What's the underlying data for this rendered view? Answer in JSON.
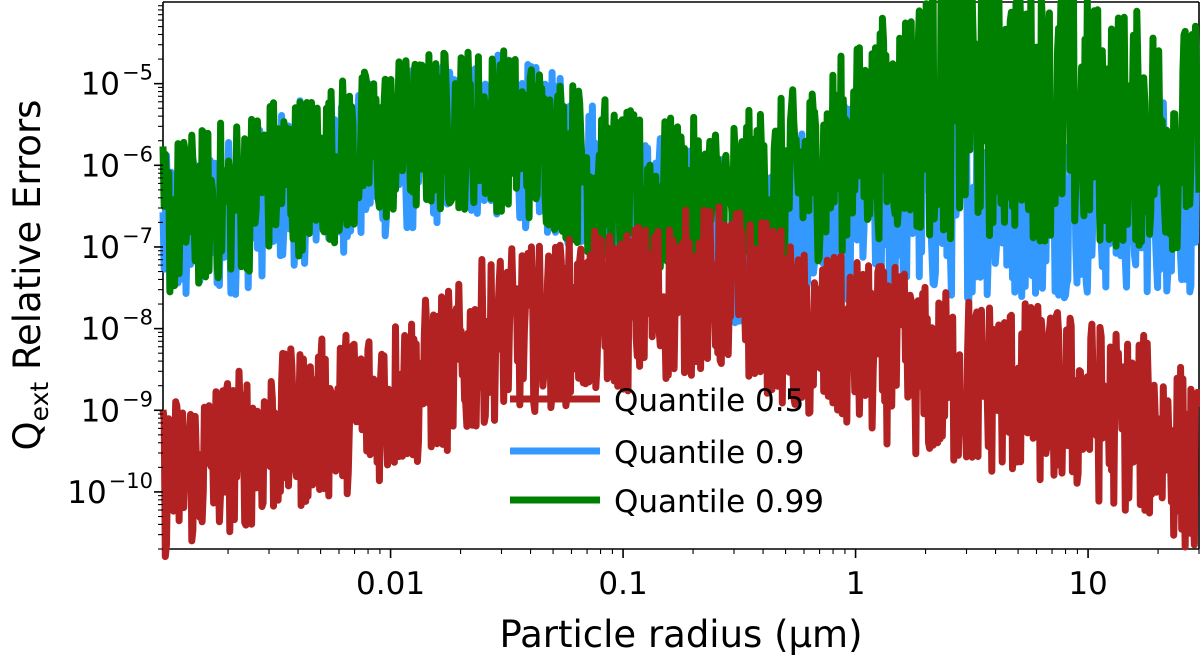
{
  "chart_data": {
    "type": "line",
    "title": "",
    "xlabel": "Particle radius (μm)",
    "ylabel": "Qext Relative Errors",
    "ylabel_main": "Q",
    "ylabel_sub": "ext",
    "ylabel_rest": " Relative Errors",
    "xscale": "log",
    "yscale": "log",
    "xlim": [
      0.00105,
      30
    ],
    "ylim": [
      2e-11,
      0.0001
    ],
    "grid": false,
    "legend_position": "lower-center",
    "x_ticks": [
      {
        "value": 0.01,
        "label": "0.01"
      },
      {
        "value": 0.1,
        "label": "0.1"
      },
      {
        "value": 1,
        "label": "1"
      },
      {
        "value": 10,
        "label": "10"
      }
    ],
    "y_ticks": [
      {
        "value": 1e-10,
        "base": "10",
        "exp": "−10"
      },
      {
        "value": 1e-09,
        "base": "10",
        "exp": "−9"
      },
      {
        "value": 1e-08,
        "base": "10",
        "exp": "−8"
      },
      {
        "value": 1e-07,
        "base": "10",
        "exp": "−7"
      },
      {
        "value": 1e-06,
        "base": "10",
        "exp": "−6"
      },
      {
        "value": 1e-05,
        "base": "10",
        "exp": "−5"
      }
    ],
    "series": [
      {
        "name": "Quantile 0.5",
        "color": "#b22222",
        "noise": [
          [
            0.001,
            0
          ],
          [
            0.25,
            0.02
          ],
          [
            1,
            0.04
          ],
          [
            30,
            0.06
          ]
        ],
        "points": [
          [
            0.00105,
            1.45e-10
          ],
          [
            0.002,
            3e-10
          ],
          [
            0.005,
            7.5e-10
          ],
          [
            0.01,
            1.5e-09
          ],
          [
            0.015,
            2.5e-09
          ],
          [
            0.02,
            3.5e-09
          ],
          [
            0.022,
            4.2e-09
          ],
          [
            0.025,
            7e-09
          ],
          [
            0.03,
            8.7e-09
          ],
          [
            0.04,
            1e-08
          ],
          [
            0.06,
            1.25e-08
          ],
          [
            0.1,
            1.7e-08
          ],
          [
            0.15,
            2.3e-08
          ],
          [
            0.2,
            2.85e-08
          ],
          [
            0.25,
            3.1e-08
          ],
          [
            0.3,
            2.9e-08
          ],
          [
            0.4,
            2e-08
          ],
          [
            0.5,
            1.3e-08
          ],
          [
            0.55,
            8e-09
          ],
          [
            0.7,
            7e-09
          ],
          [
            1.0,
            6e-09
          ],
          [
            1.5,
            4.5e-09
          ],
          [
            2.0,
            2.8e-09
          ],
          [
            3.0,
            2.2e-09
          ],
          [
            5.0,
            1.8e-09
          ],
          [
            8.0,
            1.3e-09
          ],
          [
            12.0,
            9e-10
          ],
          [
            18.0,
            6e-10
          ],
          [
            22.0,
            4.5e-10
          ],
          [
            26.0,
            2.5e-10
          ],
          [
            30.0,
            1.5e-10
          ]
        ]
      },
      {
        "name": "Quantile 0.9",
        "color": "#3399ff",
        "noise": [
          [
            0.001,
            0
          ],
          [
            0.3,
            0.02
          ],
          [
            0.6,
            0.06
          ],
          [
            1.1,
            0.1
          ],
          [
            30,
            0.11
          ]
        ],
        "points": [
          [
            0.00105,
            1.3e-07
          ],
          [
            0.0025,
            3e-07
          ],
          [
            0.0027,
            4e-07
          ],
          [
            0.0033,
            5.3e-07
          ],
          [
            0.005,
            7e-07
          ],
          [
            0.01,
            1.3e-06
          ],
          [
            0.015,
            1.8e-06
          ],
          [
            0.02,
            2.15e-06
          ],
          [
            0.026,
            2.3e-06
          ],
          [
            0.035,
            2e-06
          ],
          [
            0.05,
            1.3e-06
          ],
          [
            0.08,
            6.5e-07
          ],
          [
            0.12,
            3e-07
          ],
          [
            0.18,
            1.7e-07
          ],
          [
            0.25,
            1.5e-07
          ],
          [
            0.35,
            1.15e-07
          ],
          [
            0.45,
            1.25e-07
          ],
          [
            0.6,
            1.8e-07
          ],
          [
            0.8,
            2.8e-07
          ],
          [
            1.0,
            4e-07
          ],
          [
            1.3,
            4.5e-07
          ],
          [
            2.0,
            4e-07
          ],
          [
            4.0,
            4.2e-07
          ],
          [
            8.0,
            4.5e-07
          ],
          [
            15.0,
            4.8e-07
          ],
          [
            30.0,
            5e-07
          ]
        ]
      },
      {
        "name": "Quantile 0.99",
        "color": "#008000",
        "noise": [
          [
            0.001,
            0
          ],
          [
            0.1,
            0.015
          ],
          [
            0.5,
            0.04
          ],
          [
            1.0,
            0.1
          ],
          [
            2.0,
            0.2
          ],
          [
            3.0,
            0.27
          ],
          [
            5.0,
            0.22
          ],
          [
            30,
            0.15
          ]
        ],
        "points": [
          [
            0.00105,
            2.05e-07
          ],
          [
            0.0025,
            5e-07
          ],
          [
            0.0026,
            6.5e-07
          ],
          [
            0.0028,
            7.2e-07
          ],
          [
            0.004,
            7.8e-07
          ],
          [
            0.006,
            1.2e-06
          ],
          [
            0.01,
            2e-06
          ],
          [
            0.015,
            2.6e-06
          ],
          [
            0.022,
            3e-06
          ],
          [
            0.03,
            2.8e-06
          ],
          [
            0.05,
            1.6e-06
          ],
          [
            0.08,
            7e-07
          ],
          [
            0.1,
            4.5e-07
          ],
          [
            0.13,
            4e-07
          ],
          [
            0.18,
            3.3e-07
          ],
          [
            0.25,
            3.5e-07
          ],
          [
            0.35,
            4e-07
          ],
          [
            0.5,
            6e-07
          ],
          [
            0.7,
            1e-06
          ],
          [
            1.0,
            1.8e-06
          ],
          [
            1.3,
            3e-06
          ],
          [
            2.0,
            5e-06
          ],
          [
            3.0,
            7.5e-06
          ],
          [
            5.0,
            6e-06
          ],
          [
            8.0,
            4e-06
          ],
          [
            15.0,
            2.8e-06
          ],
          [
            30.0,
            2.2e-06
          ]
        ]
      }
    ]
  }
}
